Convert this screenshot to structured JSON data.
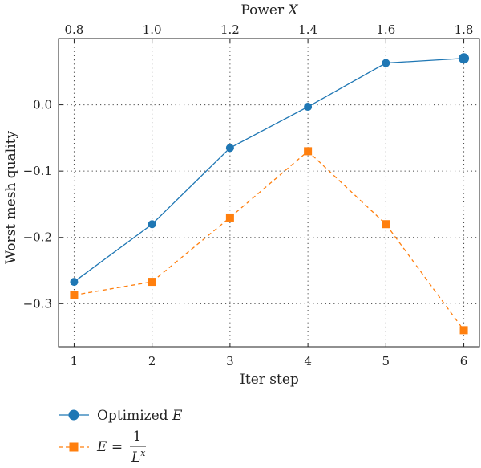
{
  "chart_data": {
    "type": "line",
    "xlabel": "Iter step",
    "x2label_prefix": "Power ",
    "x2label_var": "X",
    "ylabel": "Worst mesh quality",
    "x": [
      1,
      2,
      3,
      4,
      5,
      6
    ],
    "x_ticks": [
      "1",
      "2",
      "3",
      "4",
      "5",
      "6"
    ],
    "x2_ticks": [
      "0.8",
      "1.0",
      "1.2",
      "1.4",
      "1.6",
      "1.8"
    ],
    "y_ticks": [
      0.0,
      -0.1,
      -0.2,
      -0.3
    ],
    "y_tick_labels": [
      "0.0",
      "−0.1",
      "−0.2",
      "−0.3"
    ],
    "xlim": [
      0.8,
      6.2
    ],
    "ylim": [
      -0.365,
      0.1
    ],
    "grid": true,
    "legend_position": "bottom-left",
    "series": [
      {
        "name_text": "Optimized ",
        "name_var": "E",
        "values": [
          -0.267,
          -0.18,
          -0.065,
          -0.003,
          0.063,
          0.07
        ],
        "color": "#1f77b4",
        "marker": "circle",
        "linestyle": "solid"
      },
      {
        "name_lhs": "E",
        "name_eq": " = ",
        "name_num": "1",
        "name_den_base": "L",
        "name_den_exp": "x",
        "values": [
          -0.287,
          -0.267,
          -0.17,
          -0.07,
          -0.18,
          -0.34
        ],
        "color": "#ff7f0e",
        "marker": "square",
        "linestyle": "dashed"
      }
    ]
  }
}
